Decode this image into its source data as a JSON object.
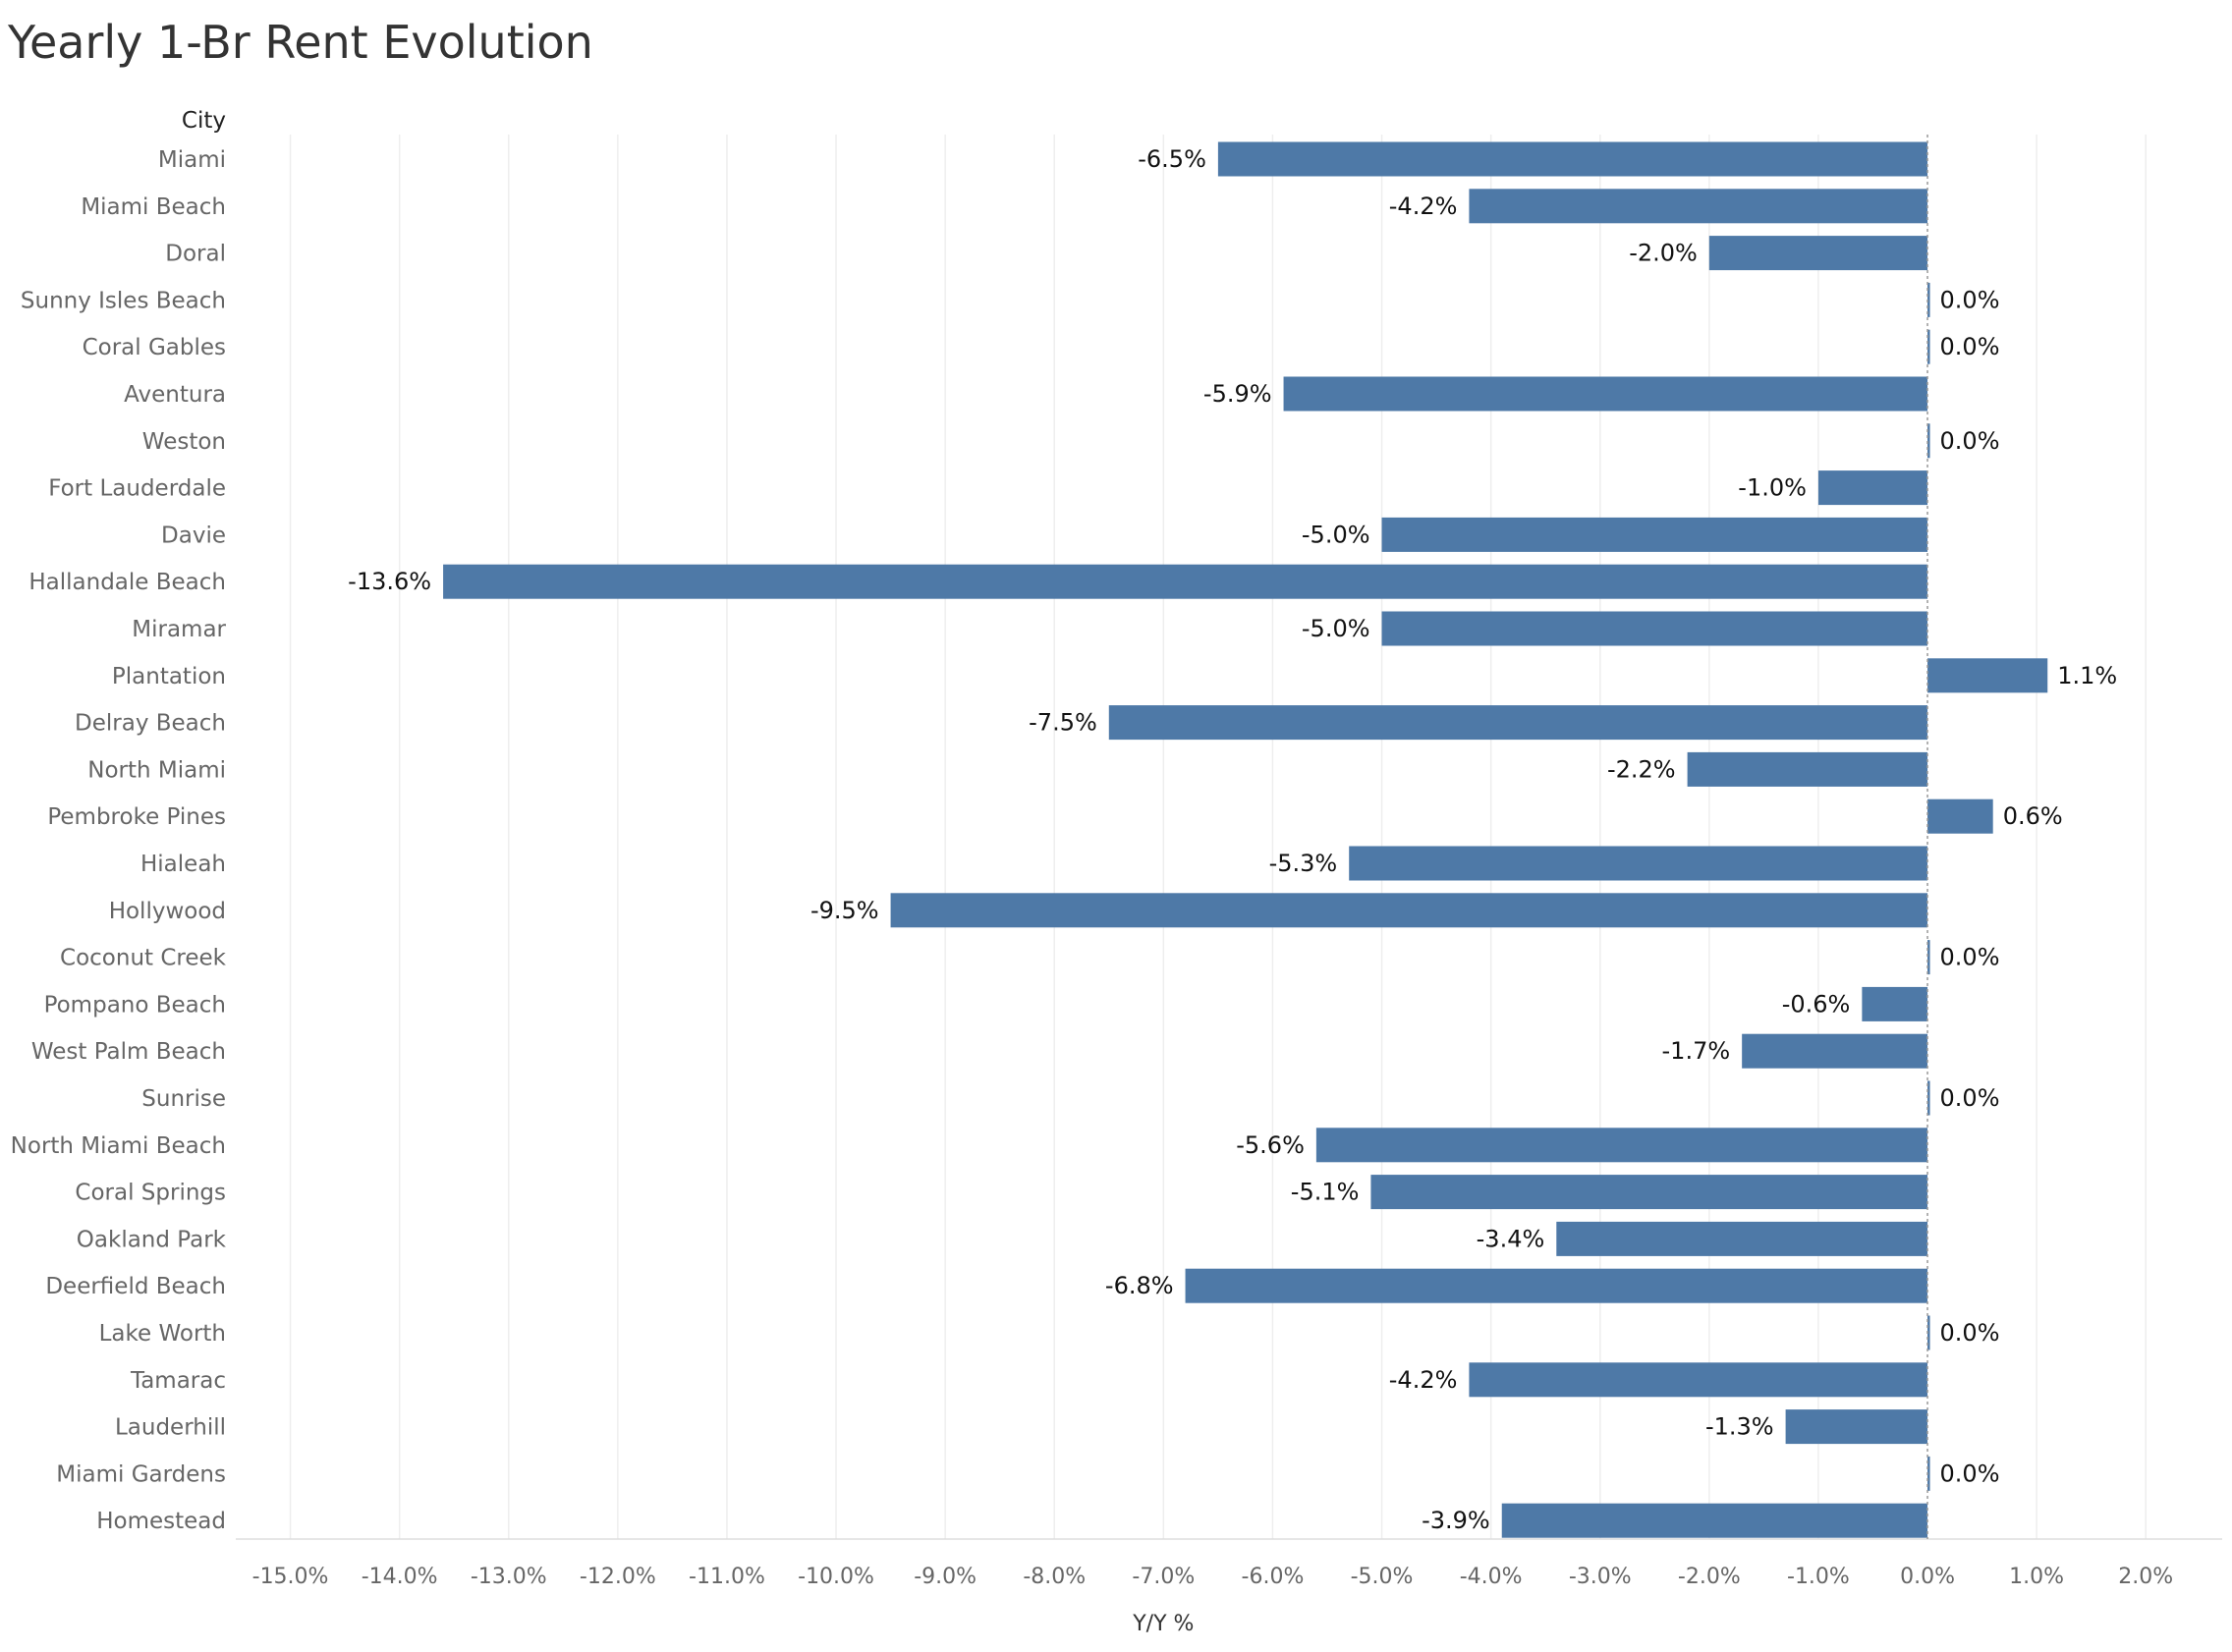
{
  "chart_data": {
    "type": "bar",
    "orientation": "horizontal",
    "title": "Yearly 1-Br Rent Evolution",
    "row_header": "City",
    "xlabel": "Y/Y %",
    "xlim": [
      -15.5,
      2.7
    ],
    "x_ticks": [
      -15,
      -14,
      -13,
      -12,
      -11,
      -10,
      -9,
      -8,
      -7,
      -6,
      -5,
      -4,
      -3,
      -2,
      -1,
      0,
      1,
      2
    ],
    "x_tick_labels": [
      "-15.0%",
      "-14.0%",
      "-13.0%",
      "-12.0%",
      "-11.0%",
      "-10.0%",
      "-9.0%",
      "-8.0%",
      "-7.0%",
      "-6.0%",
      "-5.0%",
      "-4.0%",
      "-3.0%",
      "-2.0%",
      "-1.0%",
      "0.0%",
      "1.0%",
      "2.0%"
    ],
    "grid": "vertical",
    "bar_color": "#4E79A7",
    "categories": [
      "Miami",
      "Miami Beach",
      "Doral",
      "Sunny Isles Beach",
      "Coral Gables",
      "Aventura",
      "Weston",
      "Fort Lauderdale",
      "Davie",
      "Hallandale Beach",
      "Miramar",
      "Plantation",
      "Delray Beach",
      "North Miami",
      "Pembroke Pines",
      "Hialeah",
      "Hollywood",
      "Coconut Creek",
      "Pompano Beach",
      "West Palm Beach",
      "Sunrise",
      "North Miami Beach",
      "Coral Springs",
      "Oakland Park",
      "Deerfield Beach",
      "Lake Worth",
      "Tamarac",
      "Lauderhill",
      "Miami Gardens",
      "Homestead"
    ],
    "values": [
      -6.5,
      -4.2,
      -2.0,
      0.0,
      0.0,
      -5.9,
      0.0,
      -1.0,
      -5.0,
      -13.6,
      -5.0,
      1.1,
      -7.5,
      -2.2,
      0.6,
      -5.3,
      -9.5,
      0.0,
      -0.6,
      -1.7,
      0.0,
      -5.6,
      -5.1,
      -3.4,
      -6.8,
      0.0,
      -4.2,
      -1.3,
      0.0,
      -3.9
    ],
    "value_labels": [
      "-6.5%",
      "-4.2%",
      "-2.0%",
      "0.0%",
      "0.0%",
      "-5.9%",
      "0.0%",
      "-1.0%",
      "-5.0%",
      "-13.6%",
      "-5.0%",
      "1.1%",
      "-7.5%",
      "-2.2%",
      "0.6%",
      "-5.3%",
      "-9.5%",
      "0.0%",
      "-0.6%",
      "-1.7%",
      "0.0%",
      "-5.6%",
      "-5.1%",
      "-3.4%",
      "-6.8%",
      "0.0%",
      "-4.2%",
      "-1.3%",
      "0.0%",
      "-3.9%"
    ]
  }
}
